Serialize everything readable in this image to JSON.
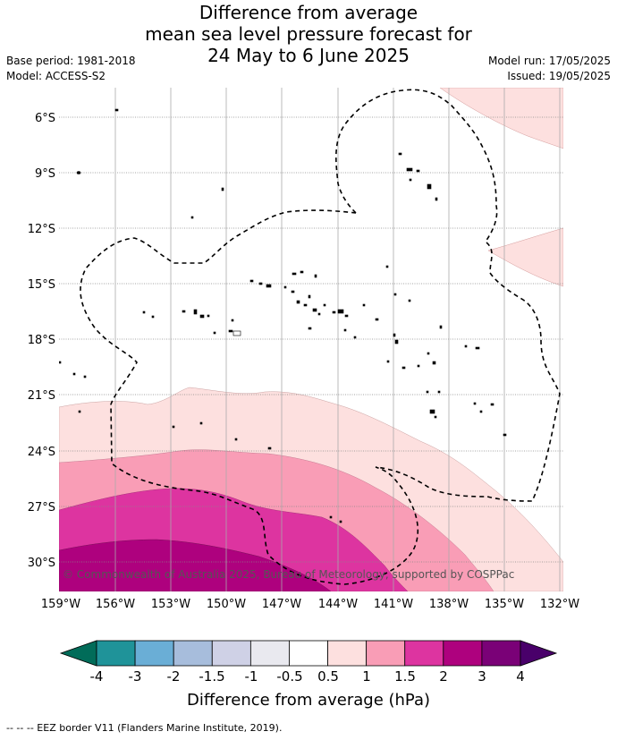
{
  "header": {
    "title_lines": [
      "Difference from average",
      "mean sea level pressure forecast for",
      "24 May to 6 June 2025"
    ],
    "base_period": "Base period: 1981-2018",
    "model": "Model: ACCESS-S2",
    "model_run": "Model run: 17/05/2025",
    "issued": "Issued: 19/05/2025"
  },
  "map": {
    "lat_labels": [
      "6°S",
      "9°S",
      "12°S",
      "15°S",
      "18°S",
      "21°S",
      "24°S",
      "27°S",
      "30°S"
    ],
    "lon_labels": [
      "159°W",
      "156°W",
      "153°W",
      "150°W",
      "147°W",
      "144°W",
      "141°W",
      "138°W",
      "135°W",
      "132°W"
    ],
    "copyright": "© Commonwealth of Australia 2025, Bureau of Meteorology, supported by COSPPac"
  },
  "colorbar": {
    "ticks": [
      "-4",
      "-3",
      "-2",
      "-1.5",
      "-1",
      "-0.5",
      "0.5",
      "1",
      "1.5",
      "2",
      "3",
      "4"
    ],
    "colors": [
      "#1f9399",
      "#6aaed6",
      "#a7bddc",
      "#cfd1e6",
      "#e9e9ef",
      "#ffffff",
      "#fde0df",
      "#f99db6",
      "#dd34a0",
      "#ae017e",
      "#7a0177"
    ],
    "low_extend_color": "#016c59",
    "high_extend_color": "#49006a",
    "label": "Difference from average (hPa)"
  },
  "footer": {
    "text": "--  --  -- EEZ border V11 (Flanders Marine Institute, 2019)."
  }
}
